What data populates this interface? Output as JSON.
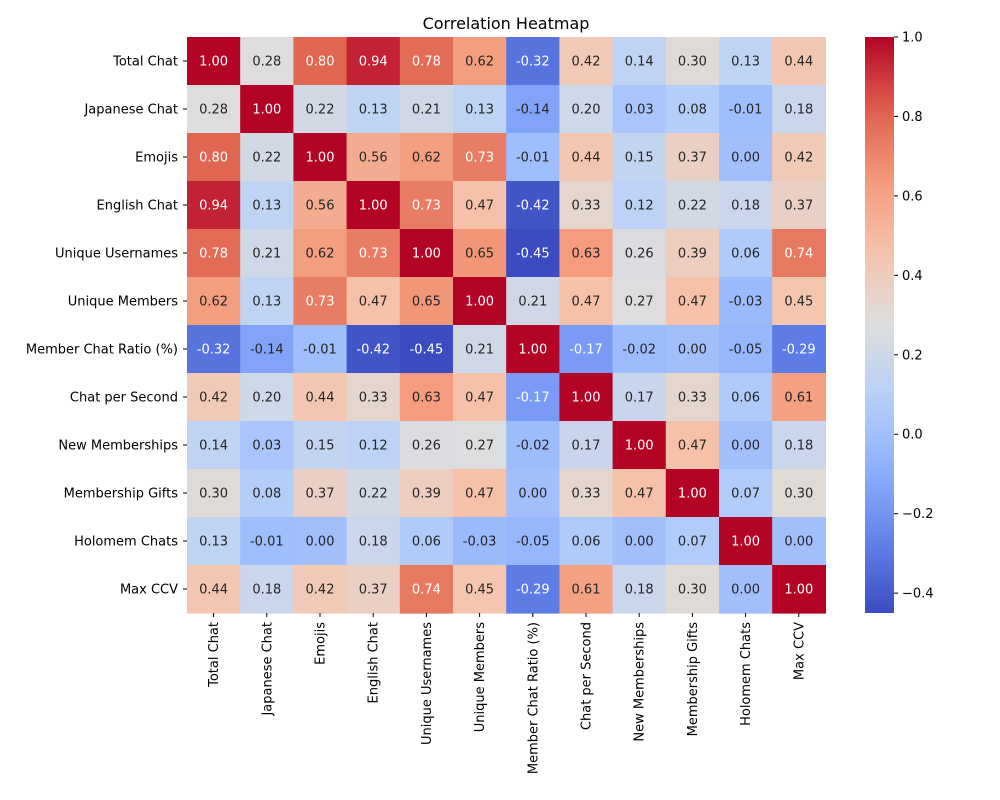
{
  "chart_data": {
    "type": "heatmap",
    "title": "Correlation Heatmap",
    "xlabel": "",
    "ylabel": "",
    "labels": [
      "Total Chat",
      "Japanese Chat",
      "Emojis",
      "English Chat",
      "Unique Usernames",
      "Unique Members",
      "Member Chat Ratio (%)",
      "Chat per Second",
      "New Memberships",
      "Membership Gifts",
      "Holomem Chats",
      "Max CCV"
    ],
    "matrix": [
      [
        1.0,
        0.28,
        0.8,
        0.94,
        0.78,
        0.62,
        -0.32,
        0.42,
        0.14,
        0.3,
        0.13,
        0.44
      ],
      [
        0.28,
        1.0,
        0.22,
        0.13,
        0.21,
        0.13,
        -0.14,
        0.2,
        0.03,
        0.08,
        -0.01,
        0.18
      ],
      [
        0.8,
        0.22,
        1.0,
        0.56,
        0.62,
        0.73,
        -0.01,
        0.44,
        0.15,
        0.37,
        0.0,
        0.42
      ],
      [
        0.94,
        0.13,
        0.56,
        1.0,
        0.73,
        0.47,
        -0.42,
        0.33,
        0.12,
        0.22,
        0.18,
        0.37
      ],
      [
        0.78,
        0.21,
        0.62,
        0.73,
        1.0,
        0.65,
        -0.45,
        0.63,
        0.26,
        0.39,
        0.06,
        0.74
      ],
      [
        0.62,
        0.13,
        0.73,
        0.47,
        0.65,
        1.0,
        0.21,
        0.47,
        0.27,
        0.47,
        -0.03,
        0.45
      ],
      [
        -0.32,
        -0.14,
        -0.01,
        -0.42,
        -0.45,
        0.21,
        1.0,
        -0.17,
        -0.02,
        -0.0,
        -0.05,
        -0.29
      ],
      [
        0.42,
        0.2,
        0.44,
        0.33,
        0.63,
        0.47,
        -0.17,
        1.0,
        0.17,
        0.33,
        0.06,
        0.61
      ],
      [
        0.14,
        0.03,
        0.15,
        0.12,
        0.26,
        0.27,
        -0.02,
        0.17,
        1.0,
        0.47,
        0.0,
        0.18
      ],
      [
        0.3,
        0.08,
        0.37,
        0.22,
        0.39,
        0.47,
        -0.0,
        0.33,
        0.47,
        1.0,
        0.07,
        0.3
      ],
      [
        0.13,
        -0.01,
        0.0,
        0.18,
        0.06,
        -0.03,
        -0.05,
        0.06,
        0.0,
        0.07,
        1.0,
        0.0
      ],
      [
        0.44,
        0.18,
        0.42,
        0.37,
        0.74,
        0.45,
        -0.29,
        0.61,
        0.18,
        0.3,
        0.0,
        1.0
      ]
    ],
    "value_format": "0.00",
    "colormap": "coolwarm",
    "color_range": [
      -0.45,
      1.0
    ],
    "colorbar_ticks": [
      -0.4,
      -0.2,
      0.0,
      0.2,
      0.4,
      0.6,
      0.8,
      1.0
    ],
    "colorbar_tick_labels": [
      "−0.4",
      "−0.2",
      "0.0",
      "0.2",
      "0.4",
      "0.6",
      "0.8",
      "1.0"
    ],
    "grid": false
  }
}
